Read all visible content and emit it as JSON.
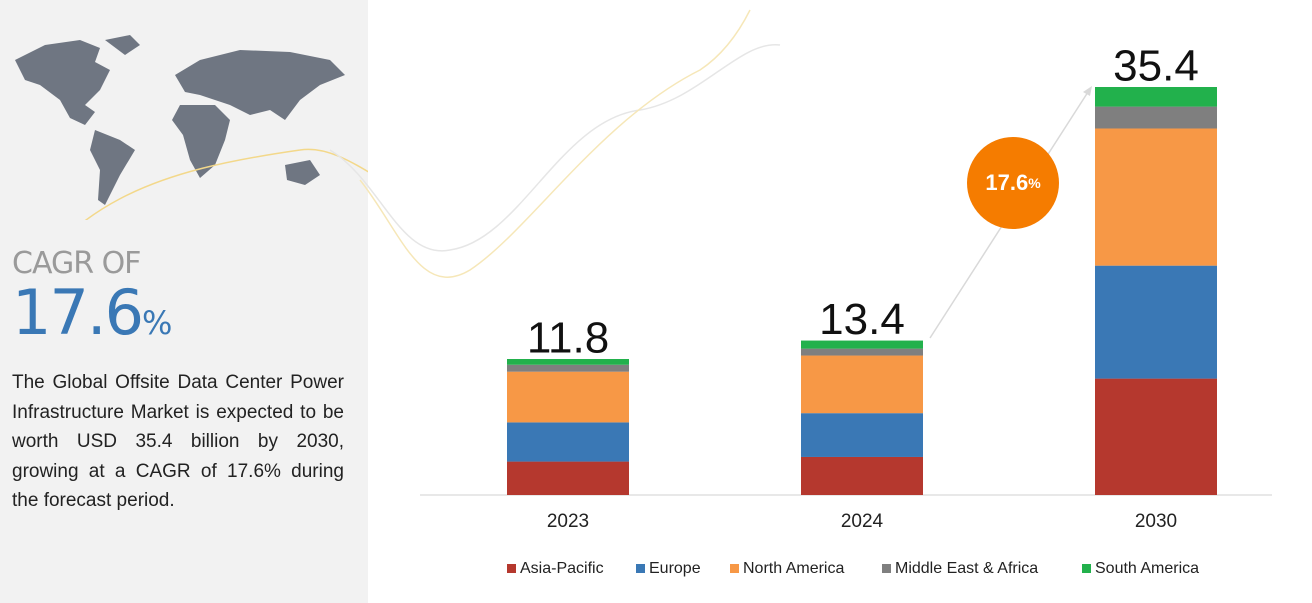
{
  "panel": {
    "cagr_label": "CAGR OF",
    "cagr_value": "17.6",
    "cagr_unit": "%",
    "description": "The Global Offsite Data Center Power Infrastructure Market is expected to be worth USD 35.4 billion by 2030, growing at a CAGR of 17.6% during the forecast period."
  },
  "chart_data": {
    "type": "stacked_bar",
    "categories": [
      "2023",
      "2024",
      "2030"
    ],
    "totals": [
      11.8,
      13.4,
      35.4
    ],
    "series": [
      {
        "name": "Asia-Pacific",
        "color": "#b5382e",
        "values": [
          2.9,
          3.3,
          10.1
        ]
      },
      {
        "name": "Europe",
        "color": "#3a78b5",
        "values": [
          3.4,
          3.8,
          9.8
        ]
      },
      {
        "name": "North America",
        "color": "#f79846",
        "values": [
          4.4,
          5.0,
          11.9
        ]
      },
      {
        "name": "Middle East & Africa",
        "color": "#7f7f7f",
        "values": [
          0.6,
          0.6,
          1.9
        ]
      },
      {
        "name": "South America",
        "color": "#22b14c",
        "values": [
          0.5,
          0.7,
          1.7
        ]
      }
    ],
    "annotation": {
      "value": "17.6",
      "unit": "%",
      "color": "#f57c00"
    }
  }
}
